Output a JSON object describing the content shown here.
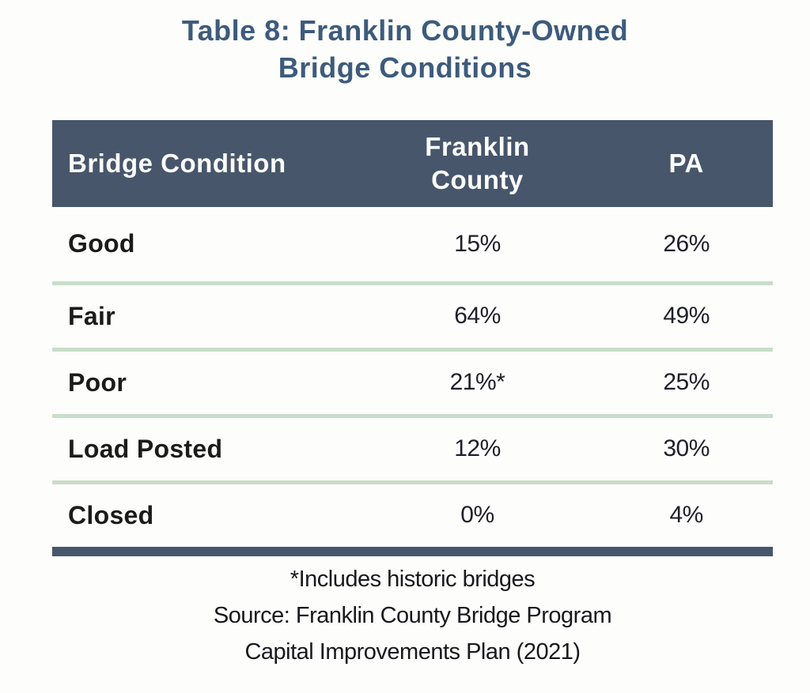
{
  "title": "Table 8: Franklin County-Owned Bridge Conditions",
  "table": {
    "columns": [
      "Bridge Condition",
      "Franklin County",
      "PA"
    ],
    "rows": [
      {
        "label": "Good",
        "franklin_county": "15%",
        "pa": "26%"
      },
      {
        "label": "Fair",
        "franklin_county": "64%",
        "pa": "49%"
      },
      {
        "label": "Poor",
        "franklin_county": "21%*",
        "pa": "25%"
      },
      {
        "label": "Load Posted",
        "franklin_county": "12%",
        "pa": "30%"
      },
      {
        "label": "Closed",
        "franklin_county": "0%",
        "pa": "4%"
      }
    ]
  },
  "footnotes": [
    "*Includes historic bridges",
    "Source: Franklin County Bridge Program",
    "Capital Improvements Plan (2021)"
  ],
  "colors": {
    "header_bg": "#47566b",
    "bottom_bar": "#47566b",
    "title_text": "#3d5b7c",
    "divider_green": "#c7dec8",
    "header_text": "#fcfcfa",
    "body_text": "#1b1b1b",
    "page_bg": "#fdfdfb"
  },
  "chart_data": {
    "type": "table",
    "title": "Table 8: Franklin County-Owned Bridge Conditions",
    "categories": [
      "Good",
      "Fair",
      "Poor",
      "Load Posted",
      "Closed"
    ],
    "series": [
      {
        "name": "Franklin County",
        "values": [
          "15%",
          "64%",
          "21%*",
          "12%",
          "0%"
        ]
      },
      {
        "name": "PA",
        "values": [
          "26%",
          "49%",
          "25%",
          "30%",
          "4%"
        ]
      }
    ],
    "annotations": [
      "*Includes historic bridges",
      "Source: Franklin County Bridge Program",
      "Capital Improvements Plan (2021)"
    ],
    "layout": {
      "header_row": true,
      "row_dividers": "pale-green",
      "bottom_rule": "thick-slate"
    }
  }
}
